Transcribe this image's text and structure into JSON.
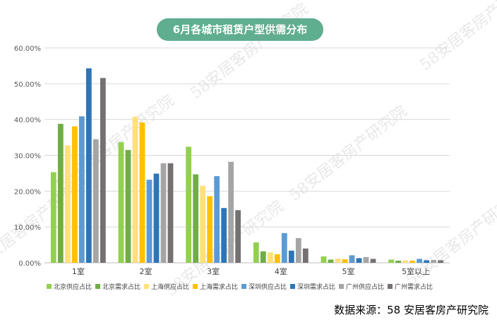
{
  "watermark": "58安居客房产研究院",
  "source": "数据来源：58 安居客房产研究院",
  "chart_data": {
    "type": "bar",
    "title": "6月各城市租赁户型供需分布",
    "xlabel": "",
    "ylabel": "",
    "ylim": [
      0,
      60
    ],
    "yticks": [
      "0.00%",
      "10.00%",
      "20.00%",
      "30.00%",
      "40.00%",
      "50.00%",
      "60.00%"
    ],
    "grid": true,
    "legend_position": "bottom",
    "categories": [
      "1室",
      "2室",
      "3室",
      "4室",
      "5室",
      "5室以上"
    ],
    "series": [
      {
        "name": "北京供应占比",
        "color": "#92d050",
        "values": [
          25.3,
          33.7,
          32.4,
          5.7,
          1.8,
          0.9
        ]
      },
      {
        "name": "北京需求占比",
        "color": "#70ad47",
        "values": [
          38.8,
          31.5,
          24.7,
          3.2,
          0.9,
          0.6
        ]
      },
      {
        "name": "上海供应占比",
        "color": "#ffe07a",
        "values": [
          32.8,
          40.8,
          21.5,
          2.9,
          1.2,
          0.7
        ]
      },
      {
        "name": "上海需求占比",
        "color": "#ffc000",
        "values": [
          38.1,
          39.2,
          18.6,
          2.4,
          1.0,
          0.6
        ]
      },
      {
        "name": "深圳供应占比",
        "color": "#5b9bd5",
        "values": [
          40.9,
          23.2,
          24.2,
          8.3,
          2.1,
          1.1
        ]
      },
      {
        "name": "深圳需求占比",
        "color": "#2e75b6",
        "values": [
          54.3,
          24.9,
          15.3,
          3.4,
          1.3,
          0.7
        ]
      },
      {
        "name": "广州供应占比",
        "color": "#a5a5a5",
        "values": [
          34.5,
          27.8,
          28.2,
          6.9,
          1.6,
          0.8
        ]
      },
      {
        "name": "广州需求占比",
        "color": "#767171",
        "values": [
          51.6,
          27.8,
          14.7,
          4.0,
          1.1,
          0.7
        ]
      }
    ]
  }
}
